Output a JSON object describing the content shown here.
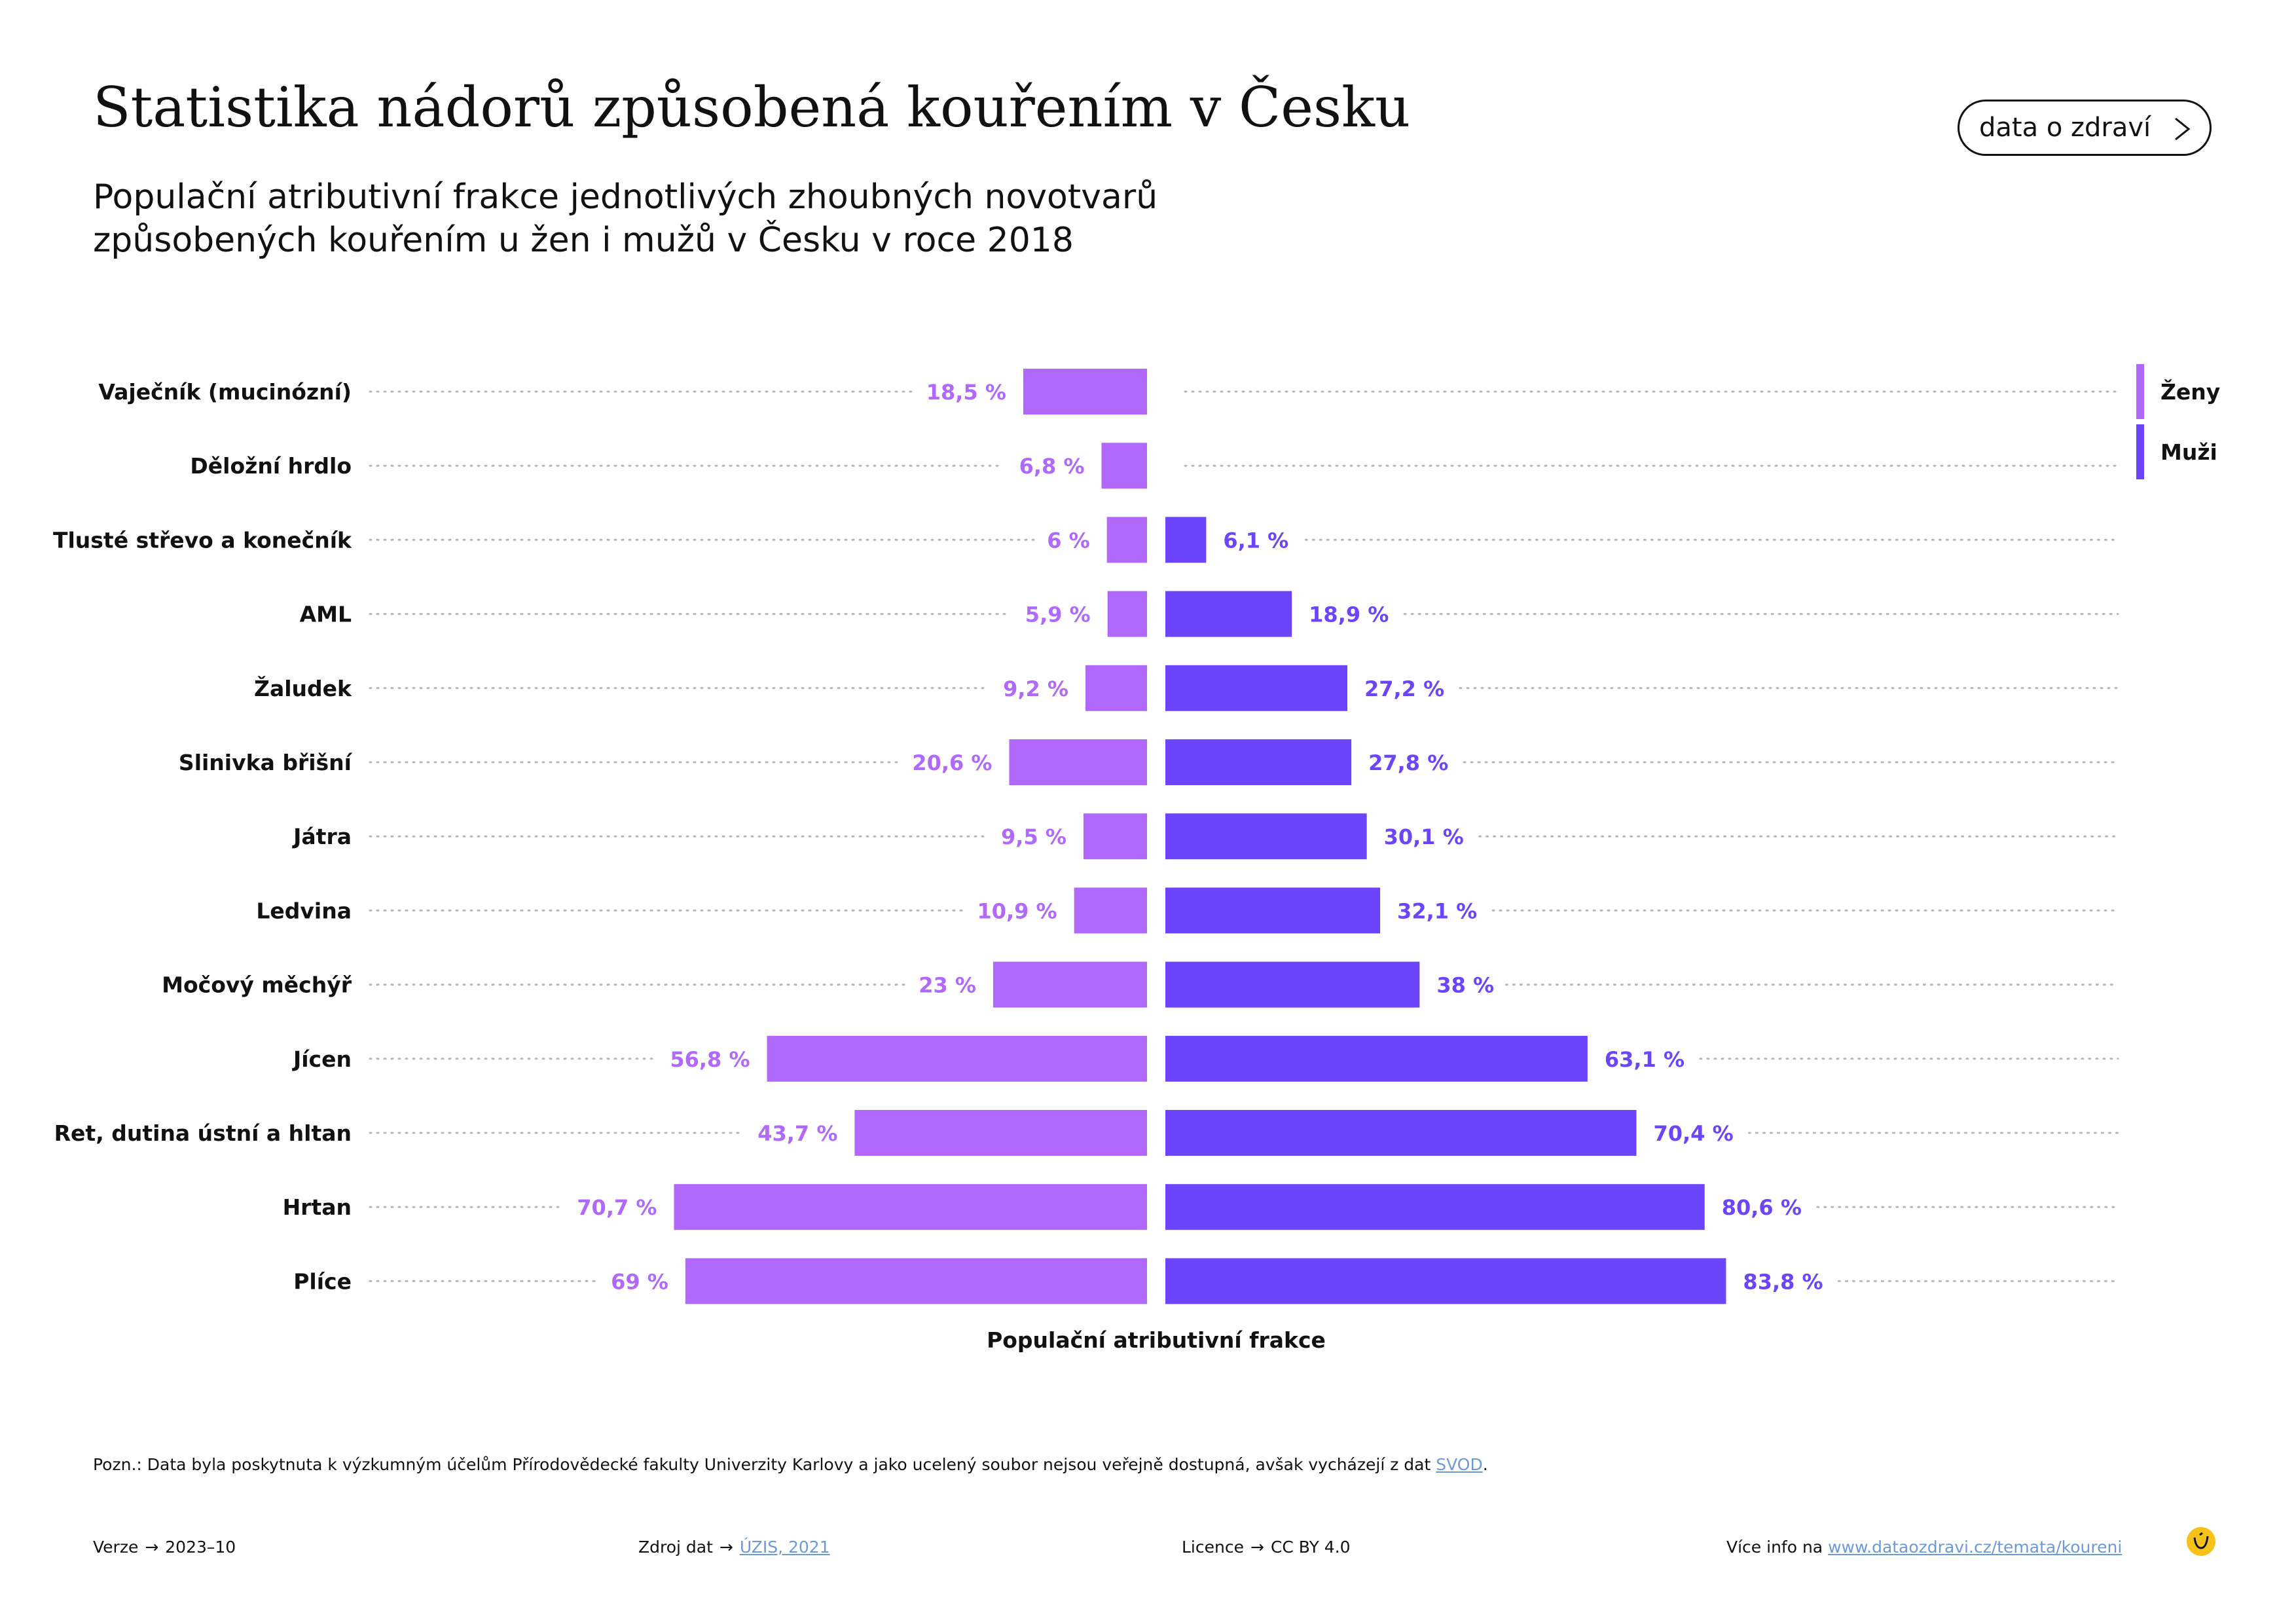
{
  "title": "Statistika nádorů způsobená kouřením v Česku",
  "subtitle": {
    "line1": "Populační atributivní frakce jednotlivých zhoubných novotvarů",
    "line2": "způsobených kouřením u žen i mužů v Česku v roce 2018"
  },
  "nav_button": {
    "label": "data o zdraví",
    "icon": "chevron-right-icon"
  },
  "chart_data": {
    "type": "bar",
    "orientation": "horizontal-diverging",
    "categories": [
      "Vaječník (mucinózní)",
      "Děložní hrdlo",
      "Tlusté střevo a konečník",
      "AML",
      "Žaludek",
      "Slinivka břišní",
      "Játra",
      "Ledvina",
      "Močový měchýř",
      "Jícen",
      "Ret, dutina ústní a hltan",
      "Hrtan",
      "Plíce"
    ],
    "series": [
      {
        "name": "Ženy",
        "color": "#b069fc",
        "values": [
          18.5,
          6.8,
          6,
          5.9,
          9.2,
          20.6,
          9.5,
          10.9,
          23,
          56.8,
          43.7,
          70.7,
          69
        ],
        "labels": [
          "18,5 %",
          "6,8 %",
          "6 %",
          "5,9 %",
          "9,2 %",
          "20,6 %",
          "9,5 %",
          "10,9 %",
          "23 %",
          "56,8 %",
          "43,7 %",
          "70,7 %",
          "69 %"
        ]
      },
      {
        "name": "Muži",
        "color": "#6b44fc",
        "values": [
          null,
          null,
          6.1,
          18.9,
          27.2,
          27.8,
          30.1,
          32.1,
          38,
          63.1,
          70.4,
          80.6,
          83.8
        ],
        "labels": [
          "",
          "",
          "6,1 %",
          "18,9 %",
          "27,2 %",
          "27,8 %",
          "30,1 %",
          "32,1 %",
          "38 %",
          "63,1 %",
          "70,4 %",
          "80,6 %",
          "83,8 %"
        ]
      }
    ],
    "xlabel": "Populační atributivní frakce",
    "xlim": [
      0,
      100
    ],
    "grid": false,
    "legend_position": "top-right"
  },
  "footnote": {
    "text": "Pozn.: Data byla poskytnuta k výzkumným účelům Přírodovědecké fakulty Univerzity Karlovy a jako ucelený soubor nejsou veřejně dostupná, avšak vycházejí z dat ",
    "link": "SVOD",
    "end": "."
  },
  "footer": {
    "version_label": "Verze",
    "version_value": "2023–10",
    "source_label": "Zdroj dat",
    "source_link": "ÚZIS, 2021",
    "license_label": "Licence",
    "license_value": "CC BY 4.0",
    "more_label": "Více info na",
    "more_link": "www.dataozdravi.cz/temata/koureni",
    "arrow": "→",
    "logo_icon": "smiley-logo-icon"
  }
}
